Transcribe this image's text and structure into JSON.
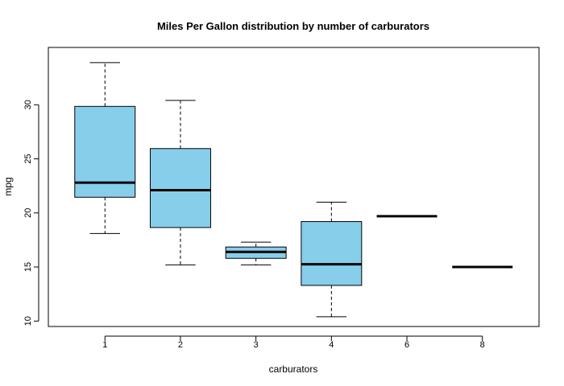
{
  "chart_data": {
    "type": "box",
    "title": "Miles Per Gallon distribution by number of carburators",
    "xlabel": "carburators",
    "ylabel": "mpg",
    "categories": [
      "1",
      "2",
      "3",
      "4",
      "6",
      "8"
    ],
    "ylim": [
      9.5,
      35.3
    ],
    "yticks": [
      10,
      15,
      20,
      25,
      30
    ],
    "box_color": "#87CEEB",
    "boxes": [
      {
        "category": "1",
        "whisker_low": 18.1,
        "q1": 21.45,
        "median": 22.8,
        "q3": 29.85,
        "whisker_high": 33.9
      },
      {
        "category": "2",
        "whisker_low": 15.2,
        "q1": 18.65,
        "median": 22.1,
        "q3": 25.95,
        "whisker_high": 30.4
      },
      {
        "category": "3",
        "whisker_low": 15.2,
        "q1": 15.8,
        "median": 16.4,
        "q3": 16.85,
        "whisker_high": 17.3
      },
      {
        "category": "4",
        "whisker_low": 10.4,
        "q1": 13.3,
        "median": 15.25,
        "q3": 19.2,
        "whisker_high": 21.0
      },
      {
        "category": "6",
        "whisker_low": 19.7,
        "q1": 19.7,
        "median": 19.7,
        "q3": 19.7,
        "whisker_high": 19.7
      },
      {
        "category": "8",
        "whisker_low": 15.0,
        "q1": 15.0,
        "median": 15.0,
        "q3": 15.0,
        "whisker_high": 15.0
      }
    ],
    "grid": false,
    "legend": "none"
  }
}
